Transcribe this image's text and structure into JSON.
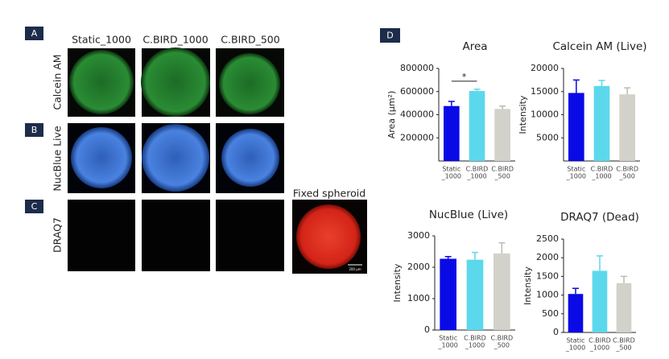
{
  "panel_labels": [
    "A",
    "B",
    "C",
    "D"
  ],
  "conditions": [
    "Static_1000",
    "C.BIRD_1000",
    "C.BIRD_500"
  ],
  "stains": [
    "Calcein AM",
    "NucBlue Live",
    "DRAQ7"
  ],
  "fixed_label": "Fixed spheroid",
  "scale_label": "200 µm",
  "chart_data": [
    {
      "type": "bar",
      "title": "Area",
      "y_label": "Area (µm²)",
      "categories": [
        [
          "Static",
          "_1000"
        ],
        [
          "C.BIRD",
          "_1000"
        ],
        [
          "C.BIRD",
          "_500"
        ]
      ],
      "values": [
        475000,
        605000,
        450000
      ],
      "errors": [
        40000,
        15000,
        25000
      ],
      "colors": [
        "#0a0ae6",
        "#5cd8ec",
        "#d2d1ca"
      ],
      "ylim": [
        0,
        800000
      ],
      "yticks": [
        200000,
        400000,
        600000,
        800000
      ],
      "significance": "*"
    },
    {
      "type": "bar",
      "title": "Calcein AM (Live)",
      "y_label": "Intensity",
      "categories": [
        [
          "Static",
          "_1000"
        ],
        [
          "C.BIRD",
          "_1000"
        ],
        [
          "C.BIRD",
          "_500"
        ]
      ],
      "values": [
        14700,
        16200,
        14400
      ],
      "errors": [
        2800,
        1200,
        1400
      ],
      "colors": [
        "#0a0ae6",
        "#5cd8ec",
        "#d2d1ca"
      ],
      "ylim": [
        0,
        20000
      ],
      "yticks": [
        5000,
        10000,
        15000,
        20000
      ]
    },
    {
      "type": "bar",
      "title": "NucBlue (Live)",
      "y_label": "Intensity",
      "categories": [
        [
          "Static",
          "_1000"
        ],
        [
          "C.BIRD",
          "_1000"
        ],
        [
          "C.BIRD",
          "_500"
        ]
      ],
      "values": [
        2270,
        2240,
        2440
      ],
      "errors": [
        70,
        230,
        340
      ],
      "colors": [
        "#0a0ae6",
        "#5cd8ec",
        "#d2d1ca"
      ],
      "ylim": [
        0,
        3000
      ],
      "yticks": [
        0,
        1000,
        2000,
        3000
      ]
    },
    {
      "type": "bar",
      "title": "DRAQ7 (Dead)",
      "y_label": "Intensity",
      "categories": [
        [
          "Static",
          "_1000"
        ],
        [
          "C.BIRD",
          "_1000"
        ],
        [
          "C.BIRD",
          "_500"
        ]
      ],
      "values": [
        1030,
        1650,
        1320
      ],
      "errors": [
        150,
        400,
        180
      ],
      "colors": [
        "#0a0ae6",
        "#5cd8ec",
        "#d2d1ca"
      ],
      "ylim": [
        0,
        2500
      ],
      "yticks": [
        0,
        500,
        1000,
        1500,
        2000,
        2500
      ]
    }
  ]
}
